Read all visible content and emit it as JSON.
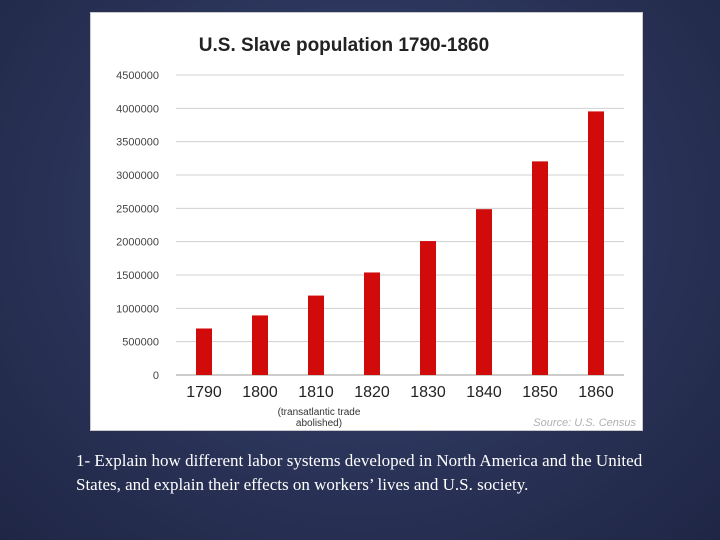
{
  "chart_data": {
    "type": "bar",
    "title": "U.S. Slave population 1790-1860",
    "categories": [
      "1790",
      "1800",
      "1810",
      "1820",
      "1830",
      "1840",
      "1850",
      "1860"
    ],
    "values": [
      697681,
      893602,
      1191362,
      1538022,
      2009043,
      2487355,
      3204313,
      3953760
    ],
    "ylim": [
      0,
      4500000
    ],
    "yticks": [
      0,
      500000,
      1000000,
      1500000,
      2000000,
      2500000,
      3000000,
      3500000,
      4000000,
      4500000
    ],
    "grid": true,
    "bar_color": "#d10a0a",
    "annotation_line1": "(transatlantic trade",
    "annotation_line2": "abolished)",
    "source": "Source: U.S. Census"
  },
  "caption": "1- Explain how different labor systems developed in North America and the United States, and explain their effects on workers’ lives and U.S. society."
}
